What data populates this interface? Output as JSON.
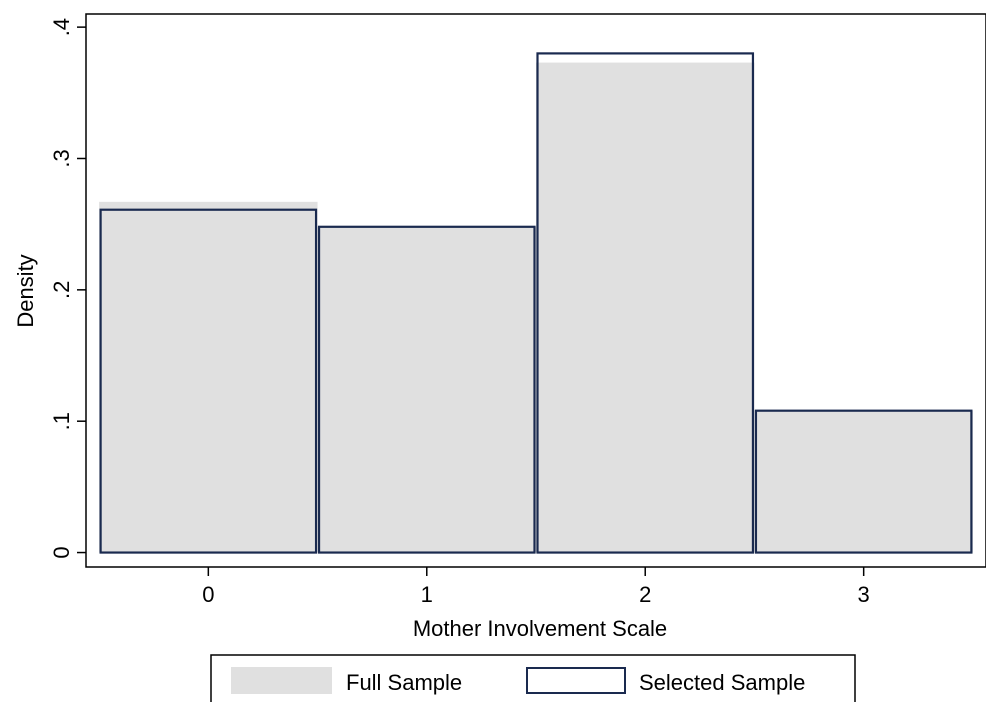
{
  "chart_data": {
    "type": "bar",
    "title": "",
    "xlabel": "Mother Involvement Scale",
    "ylabel": "Density",
    "categories": [
      0,
      1,
      2,
      3
    ],
    "x_ticks": [
      "0",
      "1",
      "2",
      "3"
    ],
    "y_ticks": [
      {
        "value": 0,
        "label": "0"
      },
      {
        "value": 0.1,
        "label": ".1"
      },
      {
        "value": 0.2,
        "label": ".2"
      },
      {
        "value": 0.3,
        "label": ".3"
      },
      {
        "value": 0.4,
        "label": ".4"
      }
    ],
    "xlim": [
      -0.56,
      3.56
    ],
    "ylim": [
      -0.011,
      0.41
    ],
    "grid": false,
    "legend_position": "bottom",
    "series": [
      {
        "name": "Full Sample",
        "style": "filled",
        "color": "#e0e0e0",
        "values": [
          0.267,
          0.248,
          0.373,
          0.108
        ]
      },
      {
        "name": "Selected Sample",
        "style": "outline",
        "color": "#1a2a4f",
        "values": [
          0.261,
          0.248,
          0.38,
          0.108
        ]
      }
    ]
  }
}
